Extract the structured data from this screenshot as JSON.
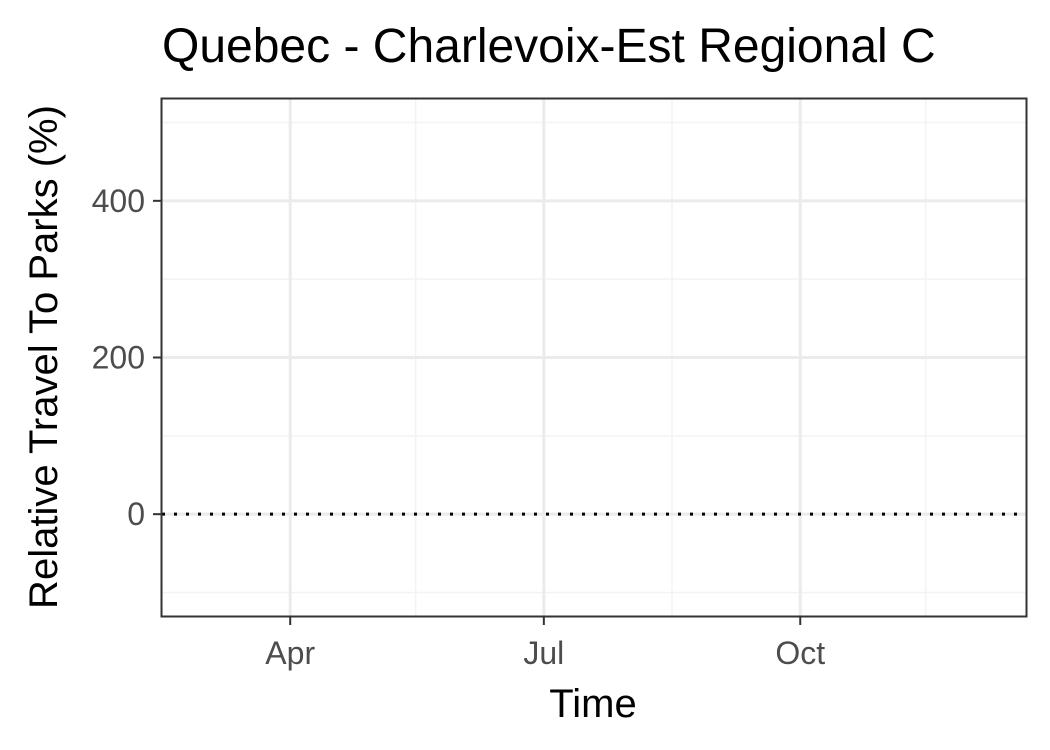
{
  "chart_data": {
    "type": "line",
    "title": "Quebec - Charlevoix-Est Regional C",
    "xlabel": "Time",
    "ylabel": "Relative Travel To Parks (%)",
    "x_axis_type": "date",
    "xlim": [
      "2020-02-15",
      "2020-12-21"
    ],
    "ylim": [
      -130,
      530
    ],
    "x_ticks": [
      {
        "date": "2020-04-01",
        "label": "Apr"
      },
      {
        "date": "2020-07-01",
        "label": "Jul"
      },
      {
        "date": "2020-10-01",
        "label": "Oct"
      }
    ],
    "x_minor_ticks": [
      "2020-02-15",
      "2020-05-16",
      "2020-08-16",
      "2020-11-15"
    ],
    "y_ticks": [
      0,
      200,
      400
    ],
    "y_minor_ticks": [
      -100,
      100,
      300,
      500
    ],
    "reference_line": {
      "y": 0,
      "style": "dotted",
      "color": "#000000"
    },
    "series": [],
    "grid": true,
    "legend": "none",
    "colors": {
      "panel_border": "#333333",
      "grid_major": "#ebebeb",
      "grid_minor": "#f3f3f3",
      "tick_label": "#4d4d4d"
    }
  }
}
